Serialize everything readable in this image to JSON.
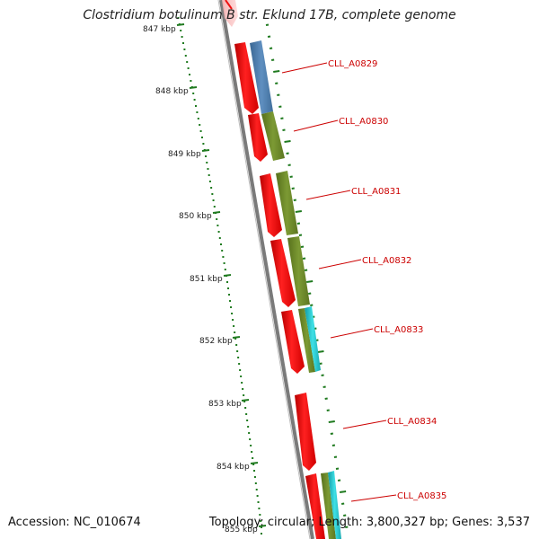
{
  "header": {
    "title": "Clostridium botulinum B str. Eklund 17B, complete genome"
  },
  "footer": {
    "accession": "Accession: NC_010674",
    "topology": "Topology: circular; Length: 3,800,327 bp; Genes: 3,537"
  },
  "scale_labels": [
    "847 kbp",
    "848 kbp",
    "849 kbp",
    "850 kbp",
    "851 kbp",
    "852 kbp",
    "853 kbp",
    "854 kbp",
    "855 kbp"
  ],
  "gene_labels": [
    "CLL_A0829",
    "CLL_A0830",
    "CLL_A0831",
    "CLL_A0832",
    "CLL_A0833",
    "CLL_A0834",
    "CLL_A0835"
  ],
  "colors": {
    "cds": "#ee1111",
    "cog_blue": "#4f7fb0",
    "cog_olive": "#6f8c2a",
    "cog_cyan": "#22c7cf",
    "backbone": "#7a7a7a",
    "tick": "#1f7a1f",
    "label": "#cc0000"
  }
}
